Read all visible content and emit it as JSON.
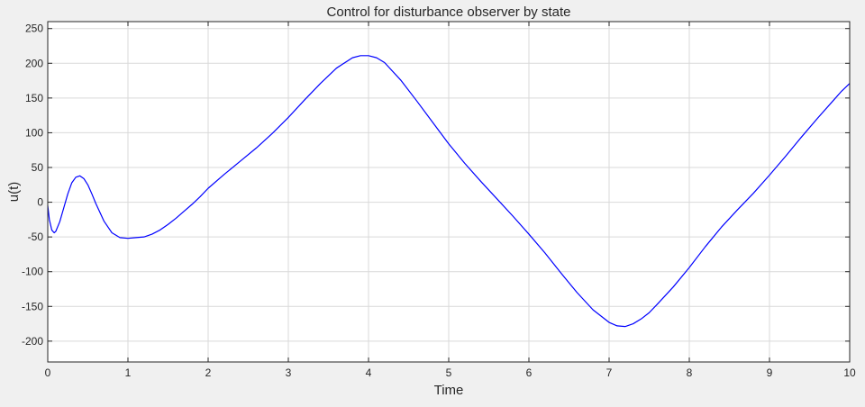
{
  "chart_data": {
    "type": "line",
    "title": "Control for disturbance observer by state",
    "xlabel": "Time",
    "ylabel": "u(t)",
    "xlim": [
      0,
      10
    ],
    "ylim": [
      -230,
      260
    ],
    "xticks": [
      0,
      1,
      2,
      3,
      4,
      5,
      6,
      7,
      8,
      9,
      10
    ],
    "yticks": [
      -200,
      -150,
      -100,
      -50,
      0,
      50,
      100,
      150,
      200,
      250
    ],
    "grid": true,
    "colors": {
      "line": "#0000ff",
      "grid": "#d9d9d9",
      "axes": "#262626",
      "background": "#ffffff",
      "figure": "#f0f0f0"
    },
    "series": [
      {
        "x": [
          0,
          0.02,
          0.05,
          0.08,
          0.1,
          0.15,
          0.2,
          0.25,
          0.3,
          0.35,
          0.4,
          0.45,
          0.5,
          0.55,
          0.6,
          0.7,
          0.8,
          0.9,
          1.0,
          1.1,
          1.2,
          1.3,
          1.4,
          1.5,
          1.6,
          1.7,
          1.8,
          1.9,
          2.0,
          2.2,
          2.4,
          2.6,
          2.8,
          3.0,
          3.2,
          3.4,
          3.6,
          3.8,
          3.9,
          4.0,
          4.1,
          4.2,
          4.4,
          4.6,
          4.8,
          5.0,
          5.2,
          5.4,
          5.6,
          5.8,
          6.0,
          6.2,
          6.4,
          6.6,
          6.8,
          7.0,
          7.1,
          7.2,
          7.3,
          7.4,
          7.5,
          7.6,
          7.8,
          8.0,
          8.2,
          8.4,
          8.6,
          8.8,
          9.0,
          9.2,
          9.4,
          9.6,
          9.8,
          9.9,
          10.0
        ],
        "y": [
          -5,
          -25,
          -40,
          -44,
          -42,
          -28,
          -8,
          12,
          28,
          36,
          38,
          34,
          25,
          12,
          -2,
          -27,
          -44,
          -51,
          -52,
          -51,
          -50,
          -46,
          -40,
          -32,
          -23,
          -13,
          -3,
          8,
          20,
          40,
          59,
          78,
          99,
          122,
          147,
          171,
          193,
          208,
          211,
          211,
          208,
          201,
          176,
          146,
          115,
          84,
          56,
          30,
          5,
          -20,
          -46,
          -73,
          -102,
          -130,
          -155,
          -173,
          -178,
          -179,
          -175,
          -168,
          -159,
          -147,
          -122,
          -94,
          -64,
          -36,
          -11,
          13,
          39,
          66,
          94,
          121,
          147,
          160,
          171
        ]
      }
    ]
  }
}
